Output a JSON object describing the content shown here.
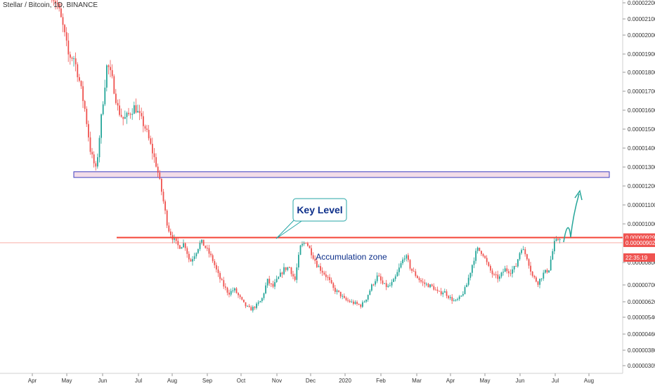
{
  "chart_data": {
    "type": "candlestick",
    "title": "Stellar / Bitcoin, 1D, BINANCE",
    "x_tick_labels": [
      "Apr",
      "May",
      "Jun",
      "Jul",
      "Aug",
      "Sep",
      "Oct",
      "Nov",
      "Dec",
      "2020",
      "Feb",
      "Mar",
      "Apr",
      "May",
      "Jun",
      "Jul",
      "Aug"
    ],
    "y_ticks": [
      "0.00002200",
      "0.00002100",
      "0.00002000",
      "0.00001900",
      "0.00001800",
      "0.00001700",
      "0.00001600",
      "0.00001500",
      "0.00001400",
      "0.00001300",
      "0.00001200",
      "0.00001100",
      "0.00001000",
      "0.00000800",
      "0.00000700",
      "0.00000620",
      "0.00000540",
      "0.00000460",
      "0.00000380",
      "0.00000305"
    ],
    "y_tick_values": [
      2.2e-05,
      2.1e-05,
      2e-05,
      1.9e-05,
      1.8e-05,
      1.7e-05,
      1.6e-05,
      1.5e-05,
      1.4e-05,
      1.3e-05,
      1.2e-05,
      1.1e-05,
      1e-05,
      8e-06,
      7e-06,
      6.2e-06,
      5.4e-06,
      4.6e-06,
      3.8e-06,
      3.05e-06
    ],
    "price_badges": [
      {
        "label": "0.00000929",
        "value": 9.29e-06,
        "color": "#ef5350"
      },
      {
        "label": "0.00000902",
        "value": 9.02e-06,
        "color": "#ef5350"
      },
      {
        "label": "22:35:19",
        "value": null,
        "color": "#ef5350"
      }
    ],
    "annotations": {
      "key_level_label": "Key Level",
      "accumulation_label": "Accumulation zone",
      "key_level_value": 9.29e-06,
      "current_price_value": 9.02e-06,
      "resistance_zone": [
        1.245e-05,
        1.275e-05
      ]
    },
    "colors": {
      "up": "#26a69a",
      "down": "#ef5350",
      "key_level": "#f44336",
      "zone_fill": "#f3dde8",
      "zone_border": "#3f3fbf",
      "callout": "#26a6a6",
      "callout_text": "#0d2f8a",
      "arrow": "#26a69a"
    },
    "price_path": [
      [
        2.25e-05,
        2.19e-05,
        2.05e-05,
        1.89e-05,
        1.88e-05,
        1.75e-05,
        1.6e-05,
        1.38e-05,
        1.28e-05,
        1.58e-05,
        1.85e-05,
        1.75e-05,
        1.6e-05,
        1.55e-05,
        1.58e-05,
        1.62e-05,
        1.56e-05,
        1.5e-05,
        1.4e-05,
        1.3e-05,
        1.15e-05,
        9.8e-06,
        9.2e-06,
        8.8e-06,
        9e-06,
        8e-06,
        8.5e-06,
        9.1e-06,
        8.7e-06,
        8.2e-06,
        7.5e-06,
        7e-06,
        6.6e-06,
        6.8e-06,
        6.4e-06,
        6e-06,
        5.8e-06,
        6e-06,
        6.3e-06,
        7.2e-06,
        6.9e-06,
        7.3e-06,
        7.7e-06,
        7.8e-06,
        7.2e-06,
        8.8e-06,
        9.1e-06,
        8.5e-06,
        7.9e-06,
        7.6e-06,
        7.3e-06,
        6.8e-06,
        6.6e-06,
        6.3e-06,
        6.2e-06,
        6.1e-06,
        6e-06,
        6.4e-06,
        7e-06,
        7.4e-06,
        7e-06,
        6.9e-06,
        7.2e-06,
        7.8e-06,
        8.4e-06,
        7.7e-06,
        7.4e-06,
        7.1e-06,
        7e-06,
        6.9e-06,
        6.6e-06,
        6.7e-06,
        6.4e-06,
        6.2e-06,
        6.4e-06,
        6.9e-06,
        7.8e-06,
        8.7e-06,
        8.5e-06,
        7.8e-06,
        7.4e-06,
        7.3e-06,
        7.7e-06,
        7.6e-06,
        7.8e-06,
        8.8e-06,
        8.3e-06,
        7.4e-06,
        7.1e-06,
        7.5e-06,
        7.7e-06,
        9e-06,
        9.3e-06
      ]
    ]
  }
}
